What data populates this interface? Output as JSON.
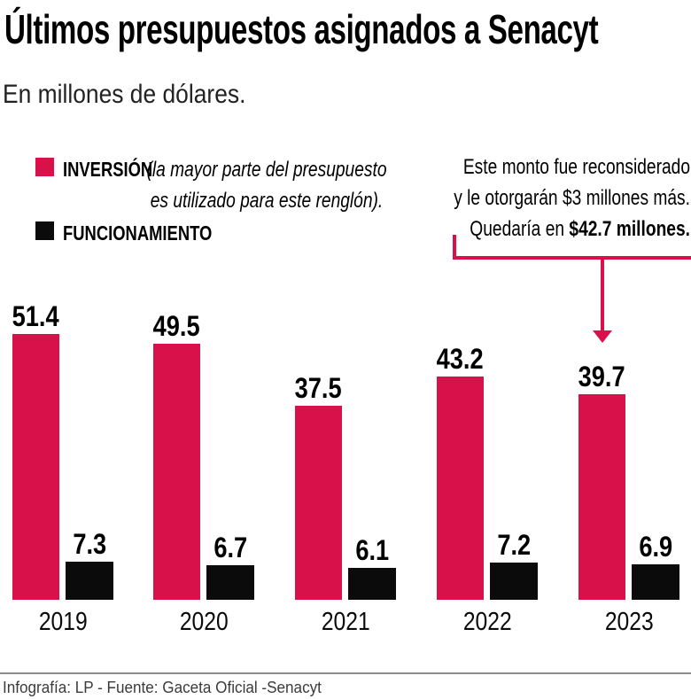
{
  "title": "Últimos presupuestos asignados a Senacyt",
  "subtitle": "En millones de dólares.",
  "legend": {
    "inversion": {
      "label": "INVERSIÓN",
      "note_line1": "(la mayor parte del presupuesto",
      "note_line2": "es utilizado para este renglón)."
    },
    "funcionamiento": {
      "label": "FUNCIONAMIENTO"
    }
  },
  "annotation": {
    "line1": "Este monto fue reconsiderado",
    "line2": "y le otorgarán $3 millones más.",
    "line3_regular": "Quedaría en ",
    "line3_bold": "$42.7 millones."
  },
  "footer": "Infografía: LP - Fuente: Gaceta Oficial -Senacyt",
  "colors": {
    "inversion": "#D8114B",
    "funcionamiento": "#0B0B0B",
    "arrow": "#D8114B",
    "footer_rule": "#8C8C8C"
  },
  "chart_data": {
    "type": "bar",
    "categories": [
      "2019",
      "2020",
      "2021",
      "2022",
      "2023"
    ],
    "series": [
      {
        "name": "INVERSIÓN",
        "color": "#D8114B",
        "values": [
          51.4,
          49.5,
          37.5,
          43.2,
          39.7
        ]
      },
      {
        "name": "FUNCIONAMIENTO",
        "color": "#0B0B0B",
        "values": [
          7.3,
          6.7,
          6.1,
          7.2,
          6.9
        ]
      }
    ],
    "title": "Últimos presupuestos asignados a Senacyt",
    "subtitle": "En millones de dólares.",
    "unit": "millones de dólares",
    "ylim": [
      0,
      55
    ],
    "grid": false,
    "value_labels": true,
    "legend_position": "top-left",
    "annotation": {
      "text": "Este monto fue reconsiderado y le otorgarán $3 millones más. Quedaría en $42.7 millones.",
      "target_category": "2023",
      "target_series": "INVERSIÓN"
    }
  }
}
